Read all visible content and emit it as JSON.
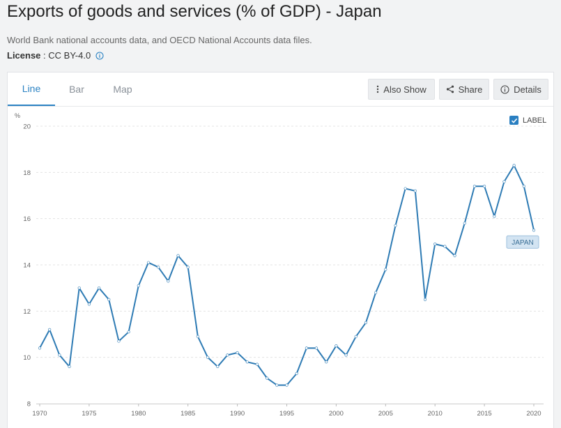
{
  "header": {
    "title": "Exports of goods and services (% of GDP) - Japan",
    "source": "World Bank national accounts data, and OECD National Accounts data files.",
    "license_label": "License",
    "license_sep": " : ",
    "license_value": "CC BY-4.0"
  },
  "tabs": [
    {
      "label": "Line",
      "active": true
    },
    {
      "label": "Bar",
      "active": false
    },
    {
      "label": "Map",
      "active": false
    }
  ],
  "toolbar": {
    "also_show": "Also Show",
    "share": "Share",
    "details": "Details"
  },
  "label_toggle": {
    "label": "LABEL",
    "checked": true
  },
  "colors": {
    "line": "#2e7bb4",
    "accent": "#2a82c3",
    "series_label_bg": "#d3e4f2",
    "series_label_border": "#9ec0dd",
    "series_label_text": "#3b6f96"
  },
  "chart_data": {
    "type": "line",
    "title": "",
    "xlabel": "",
    "ylabel": "%",
    "xlim": [
      1970,
      2020
    ],
    "ylim": [
      8,
      20
    ],
    "yticks": [
      8,
      10,
      12,
      14,
      16,
      18,
      20
    ],
    "xticks": [
      1970,
      1975,
      1980,
      1985,
      1990,
      1995,
      2000,
      2005,
      2010,
      2015,
      2020
    ],
    "grid": true,
    "series": [
      {
        "name": "JAPAN",
        "x": [
          1970,
          1971,
          1972,
          1973,
          1974,
          1975,
          1976,
          1977,
          1978,
          1979,
          1980,
          1981,
          1982,
          1983,
          1984,
          1985,
          1986,
          1987,
          1988,
          1989,
          1990,
          1991,
          1992,
          1993,
          1994,
          1995,
          1996,
          1997,
          1998,
          1999,
          2000,
          2001,
          2002,
          2003,
          2004,
          2005,
          2006,
          2007,
          2008,
          2009,
          2010,
          2011,
          2012,
          2013,
          2014,
          2015,
          2016,
          2017,
          2018,
          2019,
          2020
        ],
        "values": [
          10.4,
          11.2,
          10.1,
          9.6,
          13.0,
          12.3,
          13.0,
          12.5,
          10.7,
          11.1,
          13.1,
          14.1,
          13.9,
          13.3,
          14.4,
          13.9,
          10.9,
          10.0,
          9.6,
          10.1,
          10.2,
          9.8,
          9.7,
          9.1,
          8.8,
          8.8,
          9.3,
          10.4,
          10.4,
          9.8,
          10.5,
          10.1,
          10.9,
          11.5,
          12.8,
          13.8,
          15.7,
          17.3,
          17.2,
          12.5,
          14.9,
          14.8,
          14.4,
          15.8,
          17.4,
          17.4,
          16.1,
          17.6,
          18.3,
          17.4,
          15.5
        ]
      }
    ]
  }
}
